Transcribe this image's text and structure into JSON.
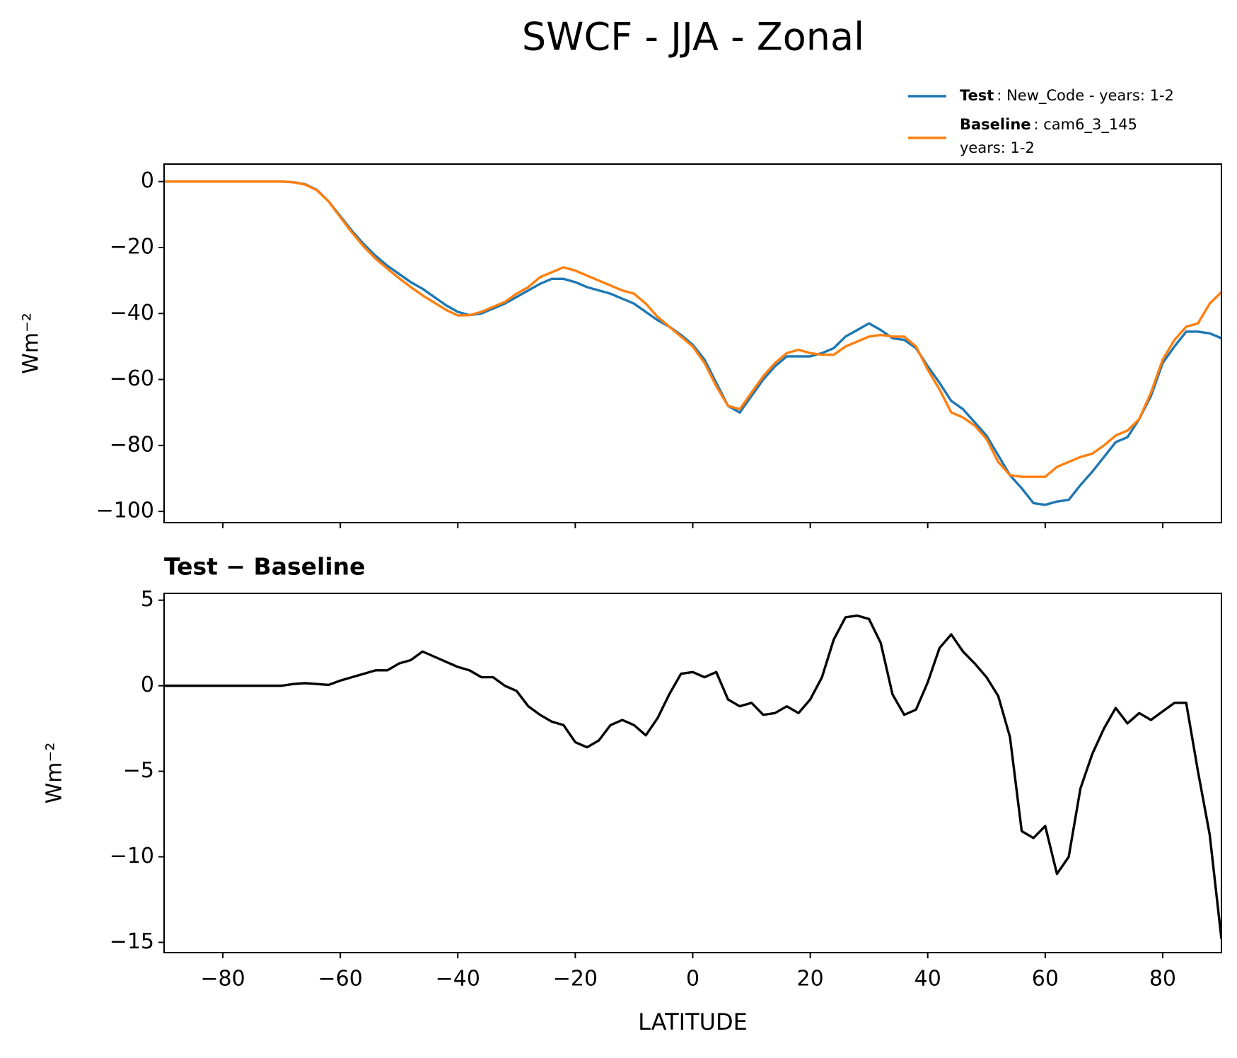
{
  "title": "SWCF - JJA - Zonal",
  "chart_data": [
    {
      "type": "line",
      "ylabel": "Wm⁻²",
      "xlim": [
        -90,
        90
      ],
      "ylim": [
        -103.4,
        5.3
      ],
      "xticks": [
        -80,
        -60,
        -40,
        -20,
        0,
        20,
        40,
        60,
        80
      ],
      "yticks": [
        0,
        {
          "value": -20,
          "label": "−20"
        },
        {
          "value": -40,
          "label": "−40"
        },
        {
          "value": -60,
          "label": "−60"
        },
        {
          "value": -80,
          "label": "−80"
        },
        {
          "value": -100,
          "label": "−100"
        }
      ],
      "x": [
        -90,
        -88,
        -86,
        -84,
        -82,
        -80,
        -78,
        -76,
        -74,
        -72,
        -70,
        -68,
        -66,
        -64,
        -62,
        -60,
        -58,
        -56,
        -54,
        -52,
        -50,
        -48,
        -46,
        -44,
        -42,
        -40,
        -38,
        -36,
        -34,
        -32,
        -30,
        -28,
        -26,
        -24,
        -22,
        -20,
        -18,
        -16,
        -14,
        -12,
        -10,
        -8,
        -6,
        -4,
        -2,
        0,
        2,
        4,
        6,
        8,
        10,
        12,
        14,
        16,
        18,
        20,
        22,
        24,
        26,
        28,
        30,
        32,
        34,
        36,
        38,
        40,
        42,
        44,
        46,
        48,
        50,
        52,
        54,
        56,
        58,
        60,
        62,
        64,
        66,
        68,
        70,
        72,
        74,
        76,
        78,
        80,
        82,
        84,
        86,
        88,
        90
      ],
      "series": [
        {
          "name": "Test",
          "label": ": New_Code - years: 1-2",
          "color": "#1f77b4",
          "values": [
            0,
            0,
            0,
            0,
            0,
            0,
            0,
            0,
            0,
            0,
            0,
            -0.2,
            -0.8,
            -2.5,
            -6,
            -10.5,
            -15,
            -19,
            -22.5,
            -25.5,
            -28,
            -30.5,
            -32.5,
            -35,
            -37.5,
            -39.5,
            -40.5,
            -40,
            -38.5,
            -37,
            -35,
            -33,
            -31,
            -29.5,
            -29.5,
            -30.5,
            -32,
            -33,
            -34,
            -35.5,
            -37,
            -39.5,
            -42,
            -44,
            -46.5,
            -49.5,
            -54,
            -61,
            -68,
            -70,
            -65,
            -60,
            -56,
            -53,
            -53,
            -53,
            -52,
            -50.5,
            -47,
            -45,
            -43,
            -45,
            -47.5,
            -48,
            -50.5,
            -56,
            -61,
            -66.5,
            -69,
            -73,
            -77,
            -83,
            -89,
            -93,
            -97.5,
            -98,
            -97,
            -96.5,
            -92,
            -88,
            -83.5,
            -79,
            -77.5,
            -72,
            -65,
            -55,
            -50,
            -45.5,
            -45.5,
            -46,
            -47.5
          ]
        },
        {
          "name": "Baseline",
          "label": ": cam6_3_145",
          "label2": "years: 1-2",
          "color": "#ff7f0e",
          "values": [
            0,
            0,
            0,
            0,
            0,
            0,
            0,
            0,
            0,
            0,
            0,
            -0.2,
            -0.9,
            -2.6,
            -6,
            -10.8,
            -15.5,
            -19.7,
            -23.4,
            -26.4,
            -29.3,
            -32,
            -34.5,
            -36.7,
            -38.9,
            -40.6,
            -40.5,
            -39.5,
            -38,
            -36.5,
            -34,
            -32,
            -29,
            -27.5,
            -26,
            -27,
            -28.5,
            -30,
            -31.5,
            -33,
            -34,
            -37,
            -41,
            -44,
            -47,
            -50,
            -55,
            -62,
            -68,
            -69,
            -64,
            -59,
            -55,
            -52,
            -51,
            -52,
            -52.5,
            -52.5,
            -50,
            -48.5,
            -47,
            -46.5,
            -47,
            -47,
            -50,
            -57,
            -63,
            -70,
            -71.5,
            -74,
            -78,
            -85,
            -89,
            -89.5,
            -89.5,
            -89.5,
            -86.5,
            -85,
            -83.5,
            -82.5,
            -80,
            -77,
            -75.5,
            -72,
            -64,
            -54,
            -48,
            -44,
            -43,
            -37,
            -33.5
          ]
        }
      ]
    },
    {
      "type": "line",
      "subtitle": "Test − Baseline",
      "ylabel": "Wm⁻²",
      "xlabel": "LATITUDE",
      "xlim": [
        -90,
        90
      ],
      "ylim": [
        -15.6,
        5.4
      ],
      "xticks": [
        {
          "value": -80,
          "label": "−80"
        },
        {
          "value": -60,
          "label": "−60"
        },
        {
          "value": -40,
          "label": "−40"
        },
        {
          "value": -20,
          "label": "−20"
        },
        0,
        20,
        40,
        60,
        80
      ],
      "yticks": [
        5,
        0,
        {
          "value": -5,
          "label": "−5"
        },
        {
          "value": -10,
          "label": "−10"
        },
        {
          "value": -15,
          "label": "−15"
        }
      ],
      "x": [
        -90,
        -88,
        -86,
        -84,
        -82,
        -80,
        -78,
        -76,
        -74,
        -72,
        -70,
        -68,
        -66,
        -64,
        -62,
        -60,
        -58,
        -56,
        -54,
        -52,
        -50,
        -48,
        -46,
        -44,
        -42,
        -40,
        -38,
        -36,
        -34,
        -32,
        -30,
        -28,
        -26,
        -24,
        -22,
        -20,
        -18,
        -16,
        -14,
        -12,
        -10,
        -8,
        -6,
        -4,
        -2,
        0,
        2,
        4,
        6,
        8,
        10,
        12,
        14,
        16,
        18,
        20,
        22,
        24,
        26,
        28,
        30,
        32,
        34,
        36,
        38,
        40,
        42,
        44,
        46,
        48,
        50,
        52,
        54,
        56,
        58,
        60,
        62,
        64,
        66,
        68,
        70,
        72,
        74,
        76,
        78,
        80,
        82,
        84,
        86,
        88,
        90
      ],
      "series": [
        {
          "color": "#000000",
          "values": [
            0,
            0,
            0,
            0,
            0,
            0,
            0,
            0,
            0,
            0,
            0,
            0.1,
            0.15,
            0.1,
            0.05,
            0.3,
            0.5,
            0.7,
            0.9,
            0.9,
            1.3,
            1.5,
            2.0,
            1.7,
            1.4,
            1.1,
            0.9,
            0.5,
            0.5,
            0,
            -0.3,
            -1.2,
            -1.7,
            -2.1,
            -2.3,
            -3.3,
            -3.6,
            -3.2,
            -2.3,
            -2.0,
            -2.3,
            -2.9,
            -1.9,
            -0.5,
            0.7,
            0.8,
            0.5,
            0.8,
            -0.8,
            -1.2,
            -1.0,
            -1.7,
            -1.6,
            -1.2,
            -1.6,
            -0.8,
            0.5,
            2.7,
            4.0,
            4.1,
            3.9,
            2.5,
            -0.5,
            -1.7,
            -1.4,
            0.2,
            2.2,
            3.0,
            2.0,
            1.3,
            0.5,
            -0.6,
            -3.0,
            -8.5,
            -8.9,
            -8.2,
            -11,
            -10,
            -6,
            -4,
            -2.5,
            -1.3,
            -2.2,
            -1.6,
            -2,
            -1.5,
            -1.0,
            -1.0,
            -5,
            -8.7,
            -14.8
          ]
        }
      ]
    }
  ]
}
